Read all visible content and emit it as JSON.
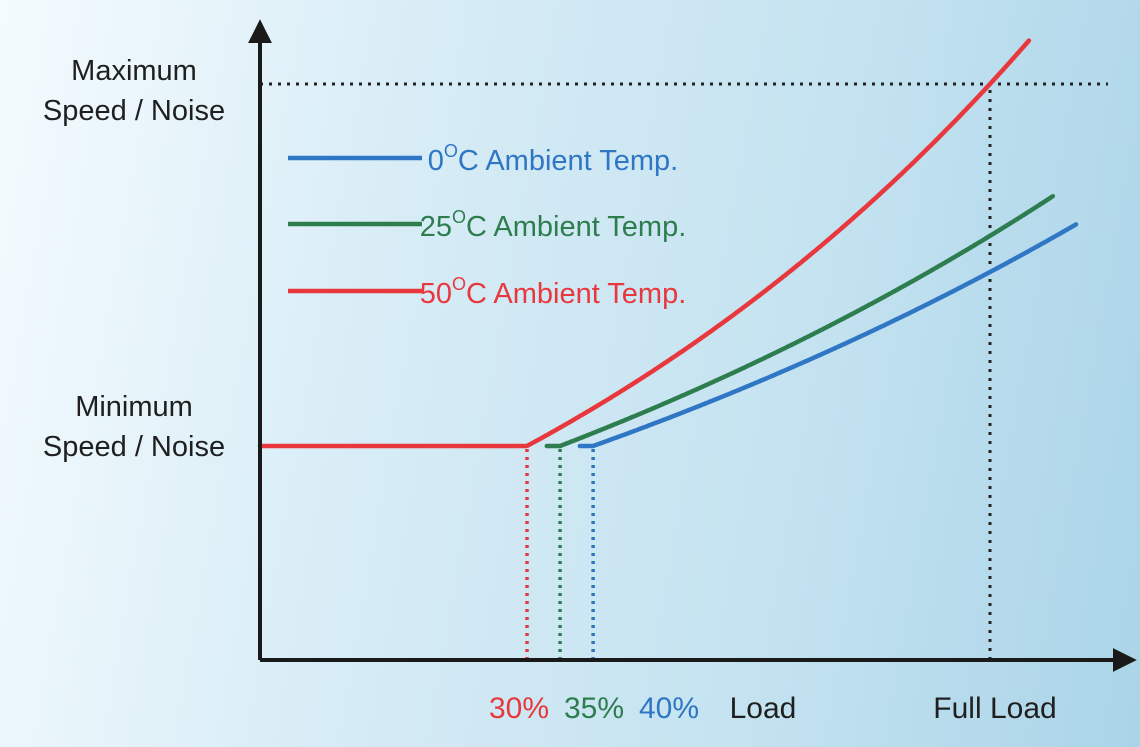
{
  "chart_data": {
    "type": "line",
    "title": "",
    "xlabel": "Load",
    "ylabel": "",
    "x_domain": [
      0,
      100
    ],
    "y_levels": {
      "min": {
        "line1": "Minimum",
        "line2": "Speed / Noise"
      },
      "max": {
        "line1": "Maximum",
        "line2": "Speed / Noise"
      }
    },
    "x_ticks": [
      {
        "label": "30%",
        "value": 30,
        "color": "#e8383d"
      },
      {
        "label": "35%",
        "value": 35,
        "color": "#2e7d4f"
      },
      {
        "label": "40%",
        "value": 40,
        "color": "#2f76c5"
      },
      {
        "label": "Load",
        "value": null,
        "color": "#1f1f1f"
      },
      {
        "label": "Full Load",
        "value": 100,
        "color": "#1f1f1f"
      }
    ],
    "series": [
      {
        "name": "0",
        "suffix": "C Ambient Temp.",
        "color": "#2f76c5",
        "flat_until": 40,
        "full_load_level": 0.55,
        "reach_max_at": 107
      },
      {
        "name": "25",
        "suffix": "C Ambient Temp.",
        "color": "#2e7d4f",
        "flat_until": 35,
        "full_load_level": 0.62,
        "reach_max_at": 103.5
      },
      {
        "name": "50",
        "suffix": "C Ambient Temp.",
        "color": "#e8383d",
        "flat_until": 30,
        "full_load_level": 1.0,
        "reach_max_at": 100
      }
    ],
    "legend": {
      "position": "top-left",
      "degree_symbol": "O"
    },
    "grid": false
  }
}
